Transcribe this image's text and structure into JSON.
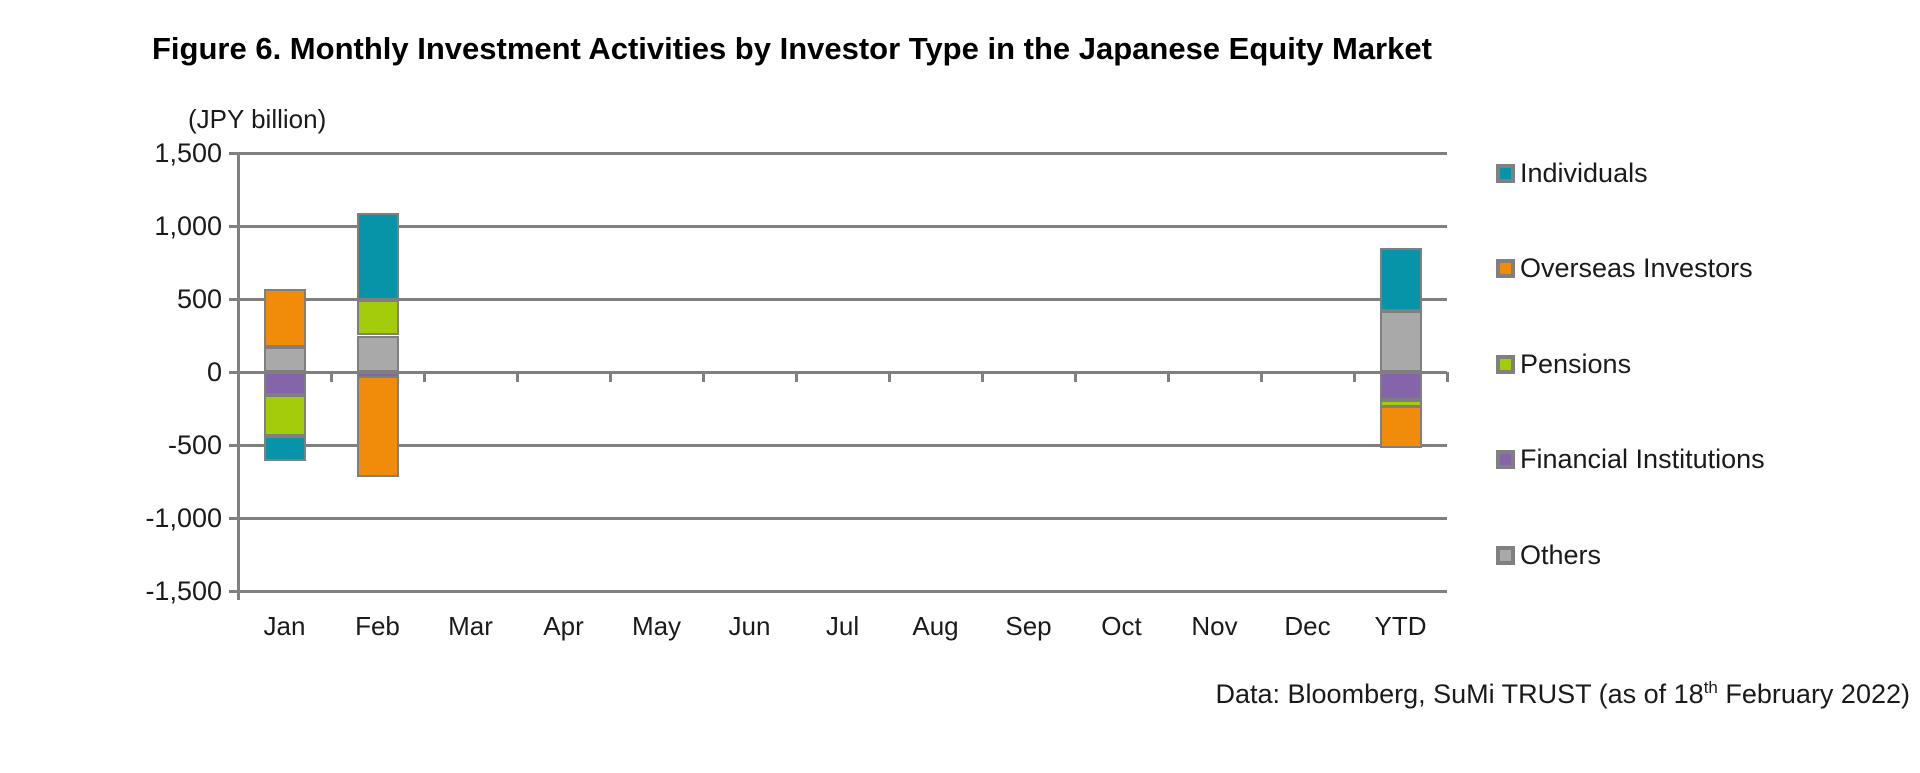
{
  "chart_data": {
    "type": "bar",
    "stacked": true,
    "title": "Figure 6. Monthly Investment Activities by Investor Type in the Japanese Equity Market",
    "ylabel": "(JPY billion)",
    "xlabel": "",
    "ylim": [
      -1500,
      1500
    ],
    "ytick_step": 500,
    "grid": true,
    "legend_position": "right",
    "categories": [
      "Jan",
      "Feb",
      "Mar",
      "Apr",
      "May",
      "Jun",
      "Jul",
      "Aug",
      "Sep",
      "Oct",
      "Nov",
      "Dec",
      "YTD"
    ],
    "series": [
      {
        "name": "Individuals",
        "color": "#0793A8",
        "values": [
          -170,
          600,
          0,
          0,
          0,
          0,
          0,
          0,
          0,
          0,
          0,
          0,
          430
        ]
      },
      {
        "name": "Overseas Investors",
        "color": "#F08C0A",
        "values": [
          400,
          -690,
          0,
          0,
          0,
          0,
          0,
          0,
          0,
          0,
          0,
          0,
          -290
        ]
      },
      {
        "name": "Pensions",
        "color": "#A3CC0B",
        "values": [
          -280,
          240,
          0,
          0,
          0,
          0,
          0,
          0,
          0,
          0,
          0,
          0,
          -40
        ]
      },
      {
        "name": "Financial Institutions",
        "color": "#8565A9",
        "values": [
          -160,
          -30,
          0,
          0,
          0,
          0,
          0,
          0,
          0,
          0,
          0,
          0,
          -190
        ]
      },
      {
        "name": "Others",
        "color": "#A9A9A9",
        "values": [
          170,
          250,
          0,
          0,
          0,
          0,
          0,
          0,
          0,
          0,
          0,
          0,
          420
        ]
      }
    ],
    "stack_order_from_axis": [
      "Others",
      "Financial Institutions",
      "Pensions",
      "Overseas Investors",
      "Individuals"
    ]
  },
  "footer": {
    "text": "Data: Bloomberg, SuMi TRUST (as of 18",
    "sup": "th",
    "text_after": " February 2022)"
  }
}
